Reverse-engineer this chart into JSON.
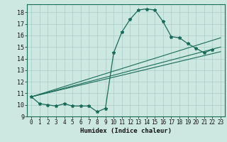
{
  "title": "",
  "xlabel": "Humidex (Indice chaleur)",
  "bg_color": "#cce8e0",
  "line_color": "#1a6b5a",
  "grid_color": "#aacccc",
  "xlim": [
    -0.5,
    23.5
  ],
  "ylim": [
    9,
    18.7
  ],
  "yticks": [
    9,
    10,
    11,
    12,
    13,
    14,
    15,
    16,
    17,
    18
  ],
  "xticks": [
    0,
    1,
    2,
    3,
    4,
    5,
    6,
    7,
    8,
    9,
    10,
    11,
    12,
    13,
    14,
    15,
    16,
    17,
    18,
    19,
    20,
    21,
    22,
    23
  ],
  "main_x": [
    0,
    1,
    2,
    3,
    4,
    5,
    6,
    7,
    8,
    9,
    10,
    11,
    12,
    13,
    14,
    15,
    16,
    17,
    18,
    19,
    20,
    21,
    22
  ],
  "main_y": [
    10.7,
    10.1,
    10.0,
    9.9,
    10.1,
    9.9,
    9.9,
    9.9,
    9.4,
    9.7,
    14.5,
    16.3,
    17.4,
    18.2,
    18.3,
    18.2,
    17.2,
    15.9,
    15.8,
    15.3,
    14.9,
    14.5,
    14.8
  ],
  "line1_x": [
    0,
    23
  ],
  "line1_y": [
    10.7,
    15.8
  ],
  "line2_x": [
    0,
    23
  ],
  "line2_y": [
    10.7,
    15.0
  ],
  "line3_x": [
    0,
    23
  ],
  "line3_y": [
    10.7,
    14.6
  ],
  "xlabel_fontsize": 6.5,
  "tick_fontsize": 5.5
}
